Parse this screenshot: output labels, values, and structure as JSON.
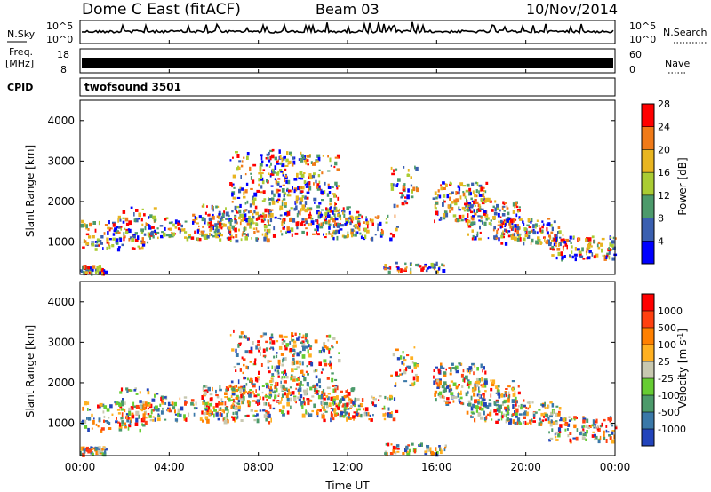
{
  "header": {
    "station": "Dome C East (fitACF)",
    "beam": "Beam 03",
    "date": "10/Nov/2014"
  },
  "noise_panel": {
    "left_label": "N.Sky",
    "left_top_tick": "10^5",
    "left_bottom_tick": "10^0",
    "right_label": "N.Search",
    "right_top_tick": "10^5",
    "right_bottom_tick": "10^0"
  },
  "freq_panel": {
    "left_label_line1": "Freq.",
    "left_label_line2": "[MHz]",
    "left_top_tick": "18",
    "left_bottom_tick": "8",
    "right_label": "Nave",
    "right_top_tick": "60",
    "right_bottom_tick": "0"
  },
  "cpid": {
    "label": "CPID",
    "value": "twofsound 3501"
  },
  "chart_data": [
    {
      "type": "heatmap",
      "panel": "power",
      "ylabel": "Slant Range [km]",
      "xlabel": "",
      "y_ticks": [
        "1000",
        "2000",
        "3000",
        "4000"
      ],
      "ylim": [
        200,
        4500
      ],
      "xlim": [
        "00:00",
        "24:00"
      ],
      "colorbar": {
        "label": "Power [dB]",
        "ticks": [
          "4",
          "8",
          "12",
          "16",
          "20",
          "24",
          "28"
        ],
        "colors": [
          "#0000ff",
          "#3a5fb0",
          "#4c9a6b",
          "#aacc33",
          "#e8b520",
          "#f07a18",
          "#ff0000"
        ]
      }
    },
    {
      "type": "heatmap",
      "panel": "velocity",
      "ylabel": "Slant Range [km]",
      "xlabel": "Time UT",
      "y_ticks": [
        "1000",
        "2000",
        "3000",
        "4000"
      ],
      "ylim": [
        200,
        4500
      ],
      "xlim": [
        "00:00",
        "24:00"
      ],
      "x_ticks": [
        "00:00",
        "04:00",
        "08:00",
        "12:00",
        "16:00",
        "20:00",
        "00:00"
      ],
      "colorbar": {
        "label": "Velocity [m s^-1]",
        "ticks": [
          "1000",
          "500",
          "100",
          "25",
          "-25",
          "-100",
          "-500",
          "-1000"
        ],
        "colors": [
          "#2244bb",
          "#3a78a8",
          "#4c9a6b",
          "#66cc33",
          "#c8c8b0",
          "#ffb020",
          "#ff8000",
          "#ff4010",
          "#ff0000"
        ]
      }
    }
  ]
}
